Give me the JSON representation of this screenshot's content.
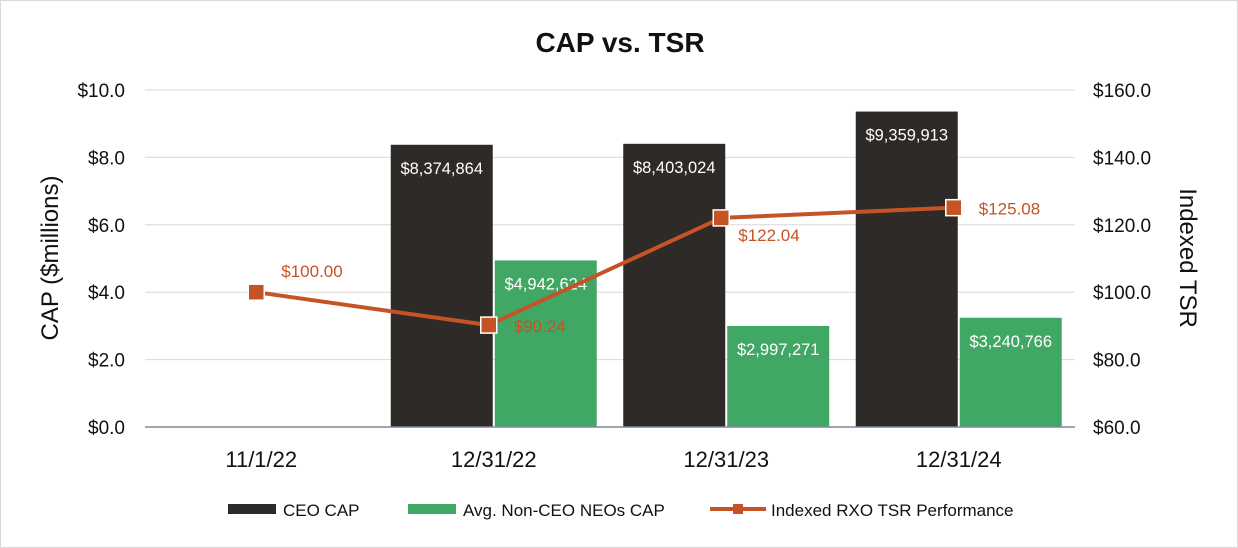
{
  "colors": {
    "ceo": "#2d2a28",
    "neo": "#41a764",
    "tsr": "#c55325",
    "grid": "#d9d9d9",
    "axis": "#7a8a99"
  },
  "chart_data": {
    "type": "bar",
    "title": "CAP vs. TSR",
    "categories": [
      "11/1/22",
      "12/31/22",
      "12/31/23",
      "12/31/24"
    ],
    "ylabel": "CAP ($millions)",
    "y2label": "Indexed TSR",
    "ylim": [
      0,
      10
    ],
    "y2lim": [
      60,
      160
    ],
    "yticks": [
      "$0.0",
      "$2.0",
      "$4.0",
      "$6.0",
      "$8.0",
      "$10.0"
    ],
    "y2ticks": [
      "$60.0",
      "$80.0",
      "$100.0",
      "$120.0",
      "$140.0",
      "$160.0"
    ],
    "series": [
      {
        "name": "CEO CAP",
        "type": "bar",
        "values": [
          null,
          8.374864,
          8.403024,
          9.359913
        ],
        "labels": [
          "",
          "$8,374,864",
          "$8,403,024",
          "$9,359,913"
        ]
      },
      {
        "name": "Avg. Non-CEO NEOs CAP",
        "type": "bar",
        "values": [
          null,
          4.942624,
          2.997271,
          3.240766
        ],
        "labels": [
          "",
          "$4,942,624",
          "$2,997,271",
          "$3,240,766"
        ]
      },
      {
        "name": "Indexed RXO TSR Performance",
        "type": "line",
        "axis": "right",
        "values": [
          100.0,
          90.24,
          122.04,
          125.08
        ],
        "labels": [
          "$100.00",
          "$90.24",
          "$122.04",
          "$125.08"
        ]
      }
    ],
    "grid": true,
    "legend": "bottom"
  }
}
